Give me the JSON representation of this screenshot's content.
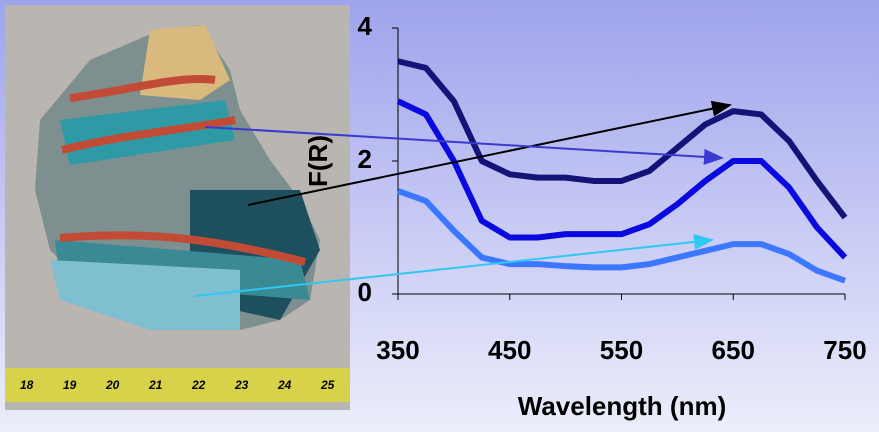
{
  "chart_data": {
    "type": "line",
    "x_label": "Wavelength (nm)",
    "y_label": "F(R)",
    "x": [
      350,
      375,
      400,
      425,
      450,
      475,
      500,
      525,
      550,
      575,
      600,
      625,
      650,
      675,
      700,
      725,
      750
    ],
    "series": [
      {
        "color": "#141478",
        "values": [
          3.5,
          3.4,
          2.9,
          2.0,
          1.8,
          1.75,
          1.75,
          1.7,
          1.7,
          1.85,
          2.2,
          2.55,
          2.75,
          2.7,
          2.3,
          1.7,
          1.15
        ]
      },
      {
        "color": "#0a0ae0",
        "values": [
          2.9,
          2.7,
          2.0,
          1.1,
          0.85,
          0.85,
          0.9,
          0.9,
          0.9,
          1.05,
          1.35,
          1.7,
          2.0,
          2.0,
          1.6,
          1.0,
          0.55
        ]
      },
      {
        "color": "#3c78ff",
        "values": [
          1.55,
          1.4,
          0.95,
          0.55,
          0.45,
          0.45,
          0.42,
          0.4,
          0.4,
          0.45,
          0.55,
          0.65,
          0.75,
          0.75,
          0.6,
          0.35,
          0.2
        ]
      }
    ],
    "xlim": [
      350,
      750
    ],
    "xticks": [
      350,
      450,
      550,
      650,
      750
    ],
    "ylim": [
      0,
      4
    ],
    "yticks": [
      0,
      2,
      4
    ]
  },
  "photo": {
    "ruler_labels": [
      "18",
      "19",
      "20",
      "21",
      "22",
      "23",
      "24",
      "25"
    ]
  }
}
